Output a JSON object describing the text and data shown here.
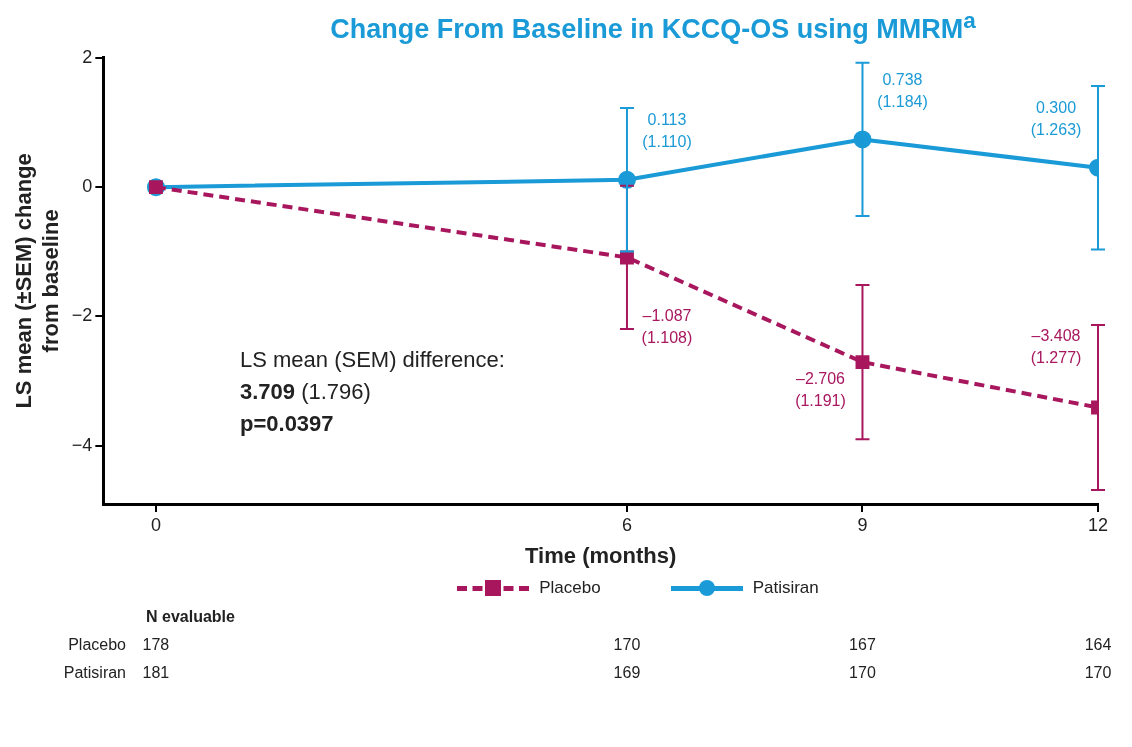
{
  "chart_data": {
    "type": "line",
    "title": "Change From Baseline in KCCQ-OS using MMRM$^{a}$",
    "xlabel": "Time (months)",
    "ylabel": "LS mean (±SEM) change from baseline",
    "x": [
      0,
      6,
      9,
      12
    ],
    "xlim": [
      -0.67,
      12
    ],
    "xticks": [
      0,
      6,
      9,
      12
    ],
    "ylim": [
      -4.9,
      2
    ],
    "yticks": [
      -4,
      -2,
      0,
      2
    ],
    "grid": false,
    "legend": "bottom",
    "series": [
      {
        "name": "Placebo",
        "color": "#a8175e",
        "marker": "square",
        "line_style": "dashed",
        "values": [
          0,
          -1.087,
          -2.706,
          -3.408
        ],
        "errors": [
          null,
          1.108,
          1.191,
          1.277
        ],
        "value_labels": [
          null,
          "–1.087\n(1.108)",
          "–2.706\n(1.191)",
          "–3.408\n(1.277)"
        ]
      },
      {
        "name": "Patisiran",
        "color": "#1a9ad6",
        "marker": "circle",
        "line_style": "solid",
        "values": [
          0,
          0.113,
          0.738,
          0.3
        ],
        "errors": [
          null,
          1.11,
          1.184,
          1.263
        ],
        "value_labels": [
          null,
          "0.113\n(1.110)",
          "0.738\n(1.184)",
          "0.300\n(1.263)"
        ]
      }
    ],
    "annotations": [
      "LS mean (SEM) difference:",
      "3.709 (1.796)",
      "p=0.0397",
      "N evaluable",
      "Placebo",
      "178",
      "170",
      "167",
      "164",
      "Patisiran",
      "181",
      "169",
      "170",
      "170"
    ]
  }
}
